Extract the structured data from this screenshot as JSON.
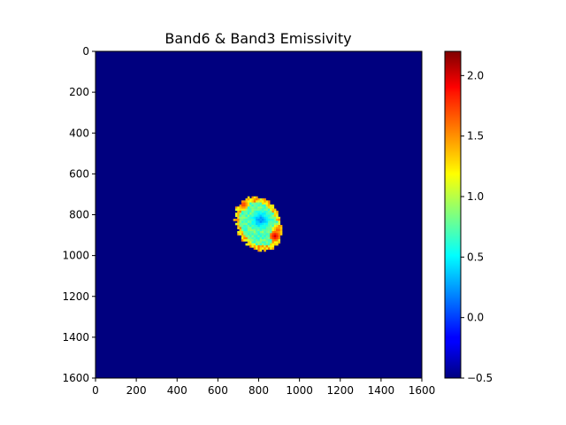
{
  "chart_data": {
    "type": "heatmap",
    "title": "Band6 & Band3 Emissivity",
    "xlabel": "",
    "ylabel": "",
    "xlim": [
      0,
      1600
    ],
    "ylim": [
      1600,
      0
    ],
    "x_ticks": [
      "0",
      "200",
      "400",
      "600",
      "800",
      "1000",
      "1200",
      "1400",
      "1600"
    ],
    "y_ticks": [
      "0",
      "200",
      "400",
      "600",
      "800",
      "1000",
      "1200",
      "1400",
      "1600"
    ],
    "y_inverted": true,
    "grid": false,
    "colormap": "jet",
    "colorbar": {
      "range": [
        -0.5,
        2.2
      ],
      "ticks": [
        "−0.5",
        "0.0",
        "0.5",
        "1.0",
        "1.5",
        "2.0"
      ],
      "tick_values": [
        -0.5,
        0.0,
        0.5,
        1.0,
        1.5,
        2.0
      ]
    },
    "background_value": -0.5,
    "blob": {
      "center": [
        800,
        845
      ],
      "semi_axes": [
        108,
        138
      ],
      "rotation_deg": -28,
      "rim_value": 1.2,
      "interior_value": 0.75,
      "core_value": 0.2,
      "core_center": [
        810,
        825
      ],
      "hotspots": [
        {
          "x": 725,
          "y": 750,
          "value": 1.8
        },
        {
          "x": 880,
          "y": 905,
          "value": 2.0
        },
        {
          "x": 895,
          "y": 875,
          "value": 1.7
        }
      ]
    }
  }
}
